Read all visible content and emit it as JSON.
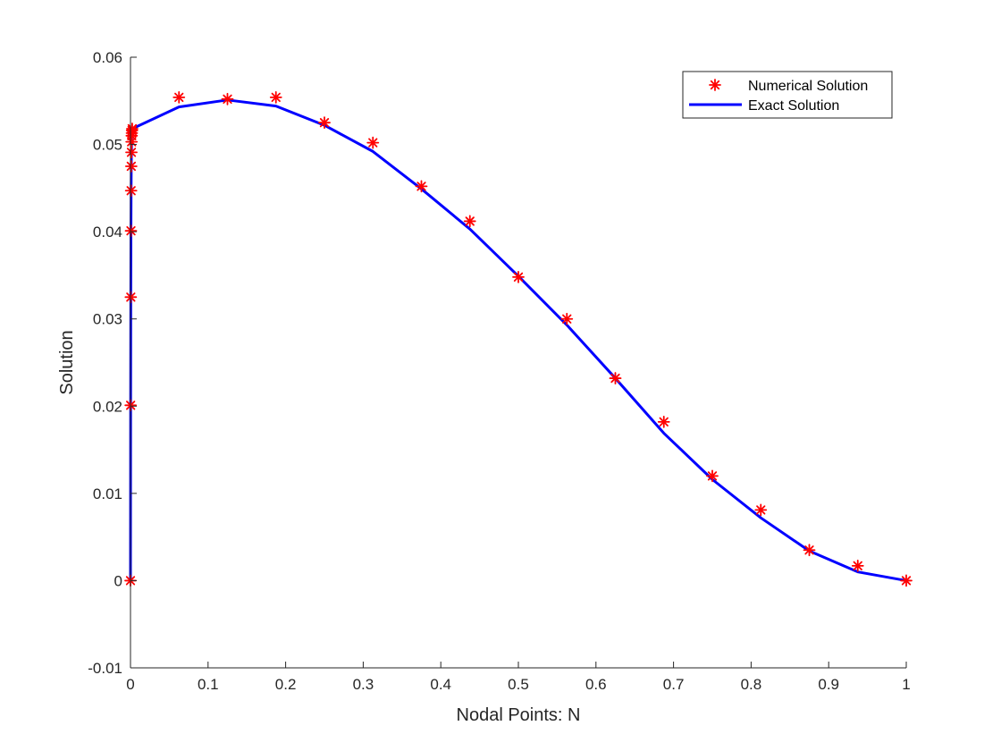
{
  "chart_data": {
    "type": "line",
    "xlabel": "Nodal Points: N",
    "ylabel": "Solution",
    "xlim": [
      0,
      1
    ],
    "ylim": [
      -0.01,
      0.06
    ],
    "xticks": [
      "0",
      "0.1",
      "0.2",
      "0.3",
      "0.4",
      "0.5",
      "0.6",
      "0.7",
      "0.8",
      "0.9",
      "1"
    ],
    "yticks": [
      "-0.01",
      "0",
      "0.01",
      "0.02",
      "0.03",
      "0.04",
      "0.05",
      "0.06"
    ],
    "grid": false,
    "legend_position": "top-right",
    "series": [
      {
        "name": "Numerical Solution",
        "style": "markers",
        "marker": "asterisk",
        "color": "#ff0000",
        "x": [
          0,
          0.0002,
          0.0004,
          0.0006,
          0.0008,
          0.001,
          0.0012,
          0.0014,
          0.0016,
          0.0018,
          0.002,
          0.0022,
          0.0625,
          0.125,
          0.1875,
          0.25,
          0.3125,
          0.375,
          0.4375,
          0.5,
          0.5625,
          0.625,
          0.6875,
          0.75,
          0.8125,
          0.875,
          0.9375,
          1
        ],
        "y": [
          0,
          0.0201,
          0.0325,
          0.0401,
          0.0447,
          0.0475,
          0.0491,
          0.0503,
          0.051,
          0.0513,
          0.0516,
          0.0518,
          0.0554,
          0.0552,
          0.0554,
          0.0525,
          0.0502,
          0.0452,
          0.0412,
          0.0348,
          0.03,
          0.0232,
          0.0182,
          0.012,
          0.0081,
          0.0035,
          0.0017,
          0
        ]
      },
      {
        "name": "Exact Solution",
        "style": "line",
        "color": "#0000ff",
        "x": [
          0,
          0.0002,
          0.0004,
          0.0006,
          0.0008,
          0.001,
          0.0012,
          0.0014,
          0.0016,
          0.0018,
          0.002,
          0.0022,
          0.0625,
          0.125,
          0.1875,
          0.25,
          0.3125,
          0.375,
          0.4375,
          0.5,
          0.5625,
          0.625,
          0.6875,
          0.75,
          0.8125,
          0.875,
          0.9375,
          1
        ],
        "y": [
          0,
          0.0201,
          0.0325,
          0.0401,
          0.0447,
          0.0475,
          0.0491,
          0.0503,
          0.051,
          0.0513,
          0.0516,
          0.0518,
          0.0543,
          0.0551,
          0.0544,
          0.0522,
          0.0492,
          0.0449,
          0.0403,
          0.0349,
          0.0293,
          0.0232,
          0.0169,
          0.0116,
          0.0072,
          0.0034,
          0.001,
          0
        ]
      }
    ]
  }
}
